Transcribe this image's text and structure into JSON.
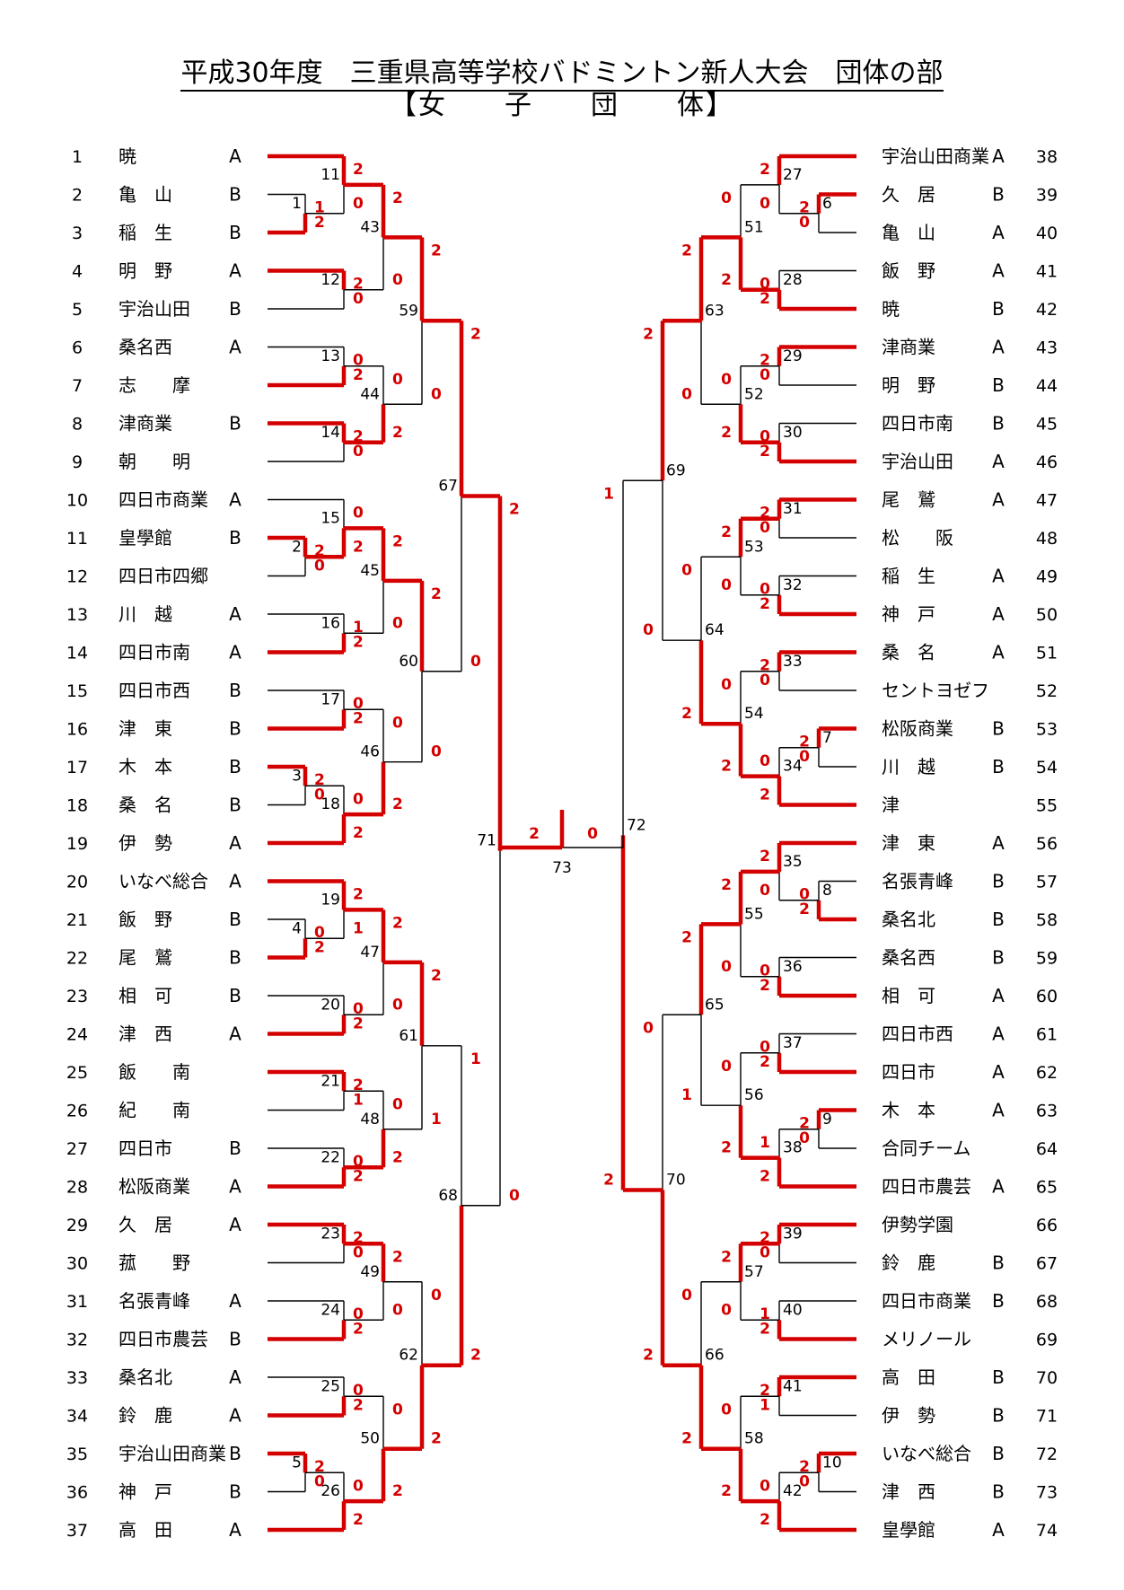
{
  "header": {
    "title": "平成30年度　三重県高等学校バドミントン新人大会　団体の部",
    "subtitle": "【女　　子　　団　　体】"
  },
  "colors": {
    "winner_line": "#d40000",
    "line": "#000000",
    "score": "#d40000"
  },
  "left_teams": [
    {
      "no": "1",
      "name": "暁",
      "suffix": "A"
    },
    {
      "no": "2",
      "name": "亀　山",
      "suffix": "B"
    },
    {
      "no": "3",
      "name": "稲　生",
      "suffix": "B"
    },
    {
      "no": "4",
      "name": "明　野",
      "suffix": "A"
    },
    {
      "no": "5",
      "name": "宇治山田",
      "suffix": "B"
    },
    {
      "no": "6",
      "name": "桑名西",
      "suffix": "A"
    },
    {
      "no": "7",
      "name": "志　　摩",
      "suffix": ""
    },
    {
      "no": "8",
      "name": "津商業",
      "suffix": "B"
    },
    {
      "no": "9",
      "name": "朝　　明",
      "suffix": ""
    },
    {
      "no": "10",
      "name": "四日市商業",
      "suffix": "A"
    },
    {
      "no": "11",
      "name": "皇學館",
      "suffix": "B"
    },
    {
      "no": "12",
      "name": "四日市四郷",
      "suffix": ""
    },
    {
      "no": "13",
      "name": "川　越",
      "suffix": "A"
    },
    {
      "no": "14",
      "name": "四日市南",
      "suffix": "A"
    },
    {
      "no": "15",
      "name": "四日市西",
      "suffix": "B"
    },
    {
      "no": "16",
      "name": "津　東",
      "suffix": "B"
    },
    {
      "no": "17",
      "name": "木　本",
      "suffix": "B"
    },
    {
      "no": "18",
      "name": "桑　名",
      "suffix": "B"
    },
    {
      "no": "19",
      "name": "伊　勢",
      "suffix": "A"
    },
    {
      "no": "20",
      "name": "いなべ総合",
      "suffix": "A"
    },
    {
      "no": "21",
      "name": "飯　野",
      "suffix": "B"
    },
    {
      "no": "22",
      "name": "尾　鷲",
      "suffix": "B"
    },
    {
      "no": "23",
      "name": "相　可",
      "suffix": "B"
    },
    {
      "no": "24",
      "name": "津　西",
      "suffix": "A"
    },
    {
      "no": "25",
      "name": "飯　　南",
      "suffix": ""
    },
    {
      "no": "26",
      "name": "紀　　南",
      "suffix": ""
    },
    {
      "no": "27",
      "name": "四日市",
      "suffix": "B"
    },
    {
      "no": "28",
      "name": "松阪商業",
      "suffix": "A"
    },
    {
      "no": "29",
      "name": "久　居",
      "suffix": "A"
    },
    {
      "no": "30",
      "name": "菰　　野",
      "suffix": ""
    },
    {
      "no": "31",
      "name": "名張青峰",
      "suffix": "A"
    },
    {
      "no": "32",
      "name": "四日市農芸",
      "suffix": "B"
    },
    {
      "no": "33",
      "name": "桑名北",
      "suffix": "A"
    },
    {
      "no": "34",
      "name": "鈴　鹿",
      "suffix": "A"
    },
    {
      "no": "35",
      "name": "宇治山田商業",
      "suffix": "B"
    },
    {
      "no": "36",
      "name": "神　戸",
      "suffix": "B"
    },
    {
      "no": "37",
      "name": "高　田",
      "suffix": "A"
    }
  ],
  "right_teams": [
    {
      "no": "38",
      "name": "宇治山田商業",
      "suffix": "A"
    },
    {
      "no": "39",
      "name": "久　居",
      "suffix": "B"
    },
    {
      "no": "40",
      "name": "亀　山",
      "suffix": "A"
    },
    {
      "no": "41",
      "name": "飯　野",
      "suffix": "A"
    },
    {
      "no": "42",
      "name": "暁",
      "suffix": "B"
    },
    {
      "no": "43",
      "name": "津商業",
      "suffix": "A"
    },
    {
      "no": "44",
      "name": "明　野",
      "suffix": "B"
    },
    {
      "no": "45",
      "name": "四日市南",
      "suffix": "B"
    },
    {
      "no": "46",
      "name": "宇治山田",
      "suffix": "A"
    },
    {
      "no": "47",
      "name": "尾　鷲",
      "suffix": "A"
    },
    {
      "no": "48",
      "name": "松　　阪",
      "suffix": ""
    },
    {
      "no": "49",
      "name": "稲　生",
      "suffix": "A"
    },
    {
      "no": "50",
      "name": "神　戸",
      "suffix": "A"
    },
    {
      "no": "51",
      "name": "桑　名",
      "suffix": "A"
    },
    {
      "no": "52",
      "name": "セントヨゼフ",
      "suffix": ""
    },
    {
      "no": "53",
      "name": "松阪商業",
      "suffix": "B"
    },
    {
      "no": "54",
      "name": "川　越",
      "suffix": "B"
    },
    {
      "no": "55",
      "name": "津",
      "suffix": ""
    },
    {
      "no": "56",
      "name": "津　東",
      "suffix": "A"
    },
    {
      "no": "57",
      "name": "名張青峰",
      "suffix": "B"
    },
    {
      "no": "58",
      "name": "桑名北",
      "suffix": "B"
    },
    {
      "no": "59",
      "name": "桑名西",
      "suffix": "B"
    },
    {
      "no": "60",
      "name": "相　可",
      "suffix": "A"
    },
    {
      "no": "61",
      "name": "四日市西",
      "suffix": "A"
    },
    {
      "no": "62",
      "name": "四日市",
      "suffix": "A"
    },
    {
      "no": "63",
      "name": "木　本",
      "suffix": "A"
    },
    {
      "no": "64",
      "name": "合同チーム",
      "suffix": ""
    },
    {
      "no": "65",
      "name": "四日市農芸",
      "suffix": "A"
    },
    {
      "no": "66",
      "name": "伊勢学園",
      "suffix": ""
    },
    {
      "no": "67",
      "name": "鈴　鹿",
      "suffix": "B"
    },
    {
      "no": "68",
      "name": "四日市商業",
      "suffix": "B"
    },
    {
      "no": "69",
      "name": "メリノール",
      "suffix": ""
    },
    {
      "no": "70",
      "name": "高　田",
      "suffix": "B"
    },
    {
      "no": "71",
      "name": "伊　勢",
      "suffix": "B"
    },
    {
      "no": "72",
      "name": "いなべ総合",
      "suffix": "B"
    },
    {
      "no": "73",
      "name": "津　西",
      "suffix": "B"
    },
    {
      "no": "74",
      "name": "皇學館",
      "suffix": "A"
    }
  ],
  "matches": [
    {
      "id": "1",
      "a": "2",
      "b": "3",
      "sa": 1,
      "sb": 2
    },
    {
      "id": "2",
      "a": "11",
      "b": "12",
      "sa": 2,
      "sb": 0
    },
    {
      "id": "3",
      "a": "17",
      "b": "18",
      "sa": 2,
      "sb": 0
    },
    {
      "id": "4",
      "a": "21",
      "b": "22",
      "sa": 0,
      "sb": 2
    },
    {
      "id": "5",
      "a": "35",
      "b": "36",
      "sa": 2,
      "sb": 0
    },
    {
      "id": "6",
      "a": "39",
      "b": "40",
      "sa": 2,
      "sb": 0
    },
    {
      "id": "7",
      "a": "53",
      "b": "54",
      "sa": 2,
      "sb": 0
    },
    {
      "id": "8",
      "a": "57",
      "b": "58",
      "sa": 0,
      "sb": 2
    },
    {
      "id": "9",
      "a": "63",
      "b": "64",
      "sa": 2,
      "sb": 0
    },
    {
      "id": "10",
      "a": "72",
      "b": "73",
      "sa": 2,
      "sb": 0
    },
    {
      "id": "11",
      "a": "1",
      "b": "1w",
      "sa": 2,
      "sb": 0
    },
    {
      "id": "12",
      "a": "4",
      "b": "5",
      "sa": 2,
      "sb": 0
    },
    {
      "id": "13",
      "a": "6",
      "b": "7",
      "sa": 0,
      "sb": 2
    },
    {
      "id": "14",
      "a": "8",
      "b": "9",
      "sa": 2,
      "sb": 0
    },
    {
      "id": "15",
      "a": "10",
      "b": "2w",
      "sa": 0,
      "sb": 2
    },
    {
      "id": "16",
      "a": "13",
      "b": "14",
      "sa": 1,
      "sb": 2
    },
    {
      "id": "17",
      "a": "15",
      "b": "16",
      "sa": 0,
      "sb": 2
    },
    {
      "id": "18",
      "a": "3w",
      "b": "19",
      "sa": 0,
      "sb": 2
    },
    {
      "id": "19",
      "a": "20",
      "b": "4w",
      "sa": 2,
      "sb": 1
    },
    {
      "id": "20",
      "a": "23",
      "b": "24",
      "sa": 0,
      "sb": 2
    },
    {
      "id": "21",
      "a": "25",
      "b": "26",
      "sa": 2,
      "sb": 1
    },
    {
      "id": "22",
      "a": "27",
      "b": "28",
      "sa": 0,
      "sb": 2
    },
    {
      "id": "23",
      "a": "29",
      "b": "30",
      "sa": 2,
      "sb": 0
    },
    {
      "id": "24",
      "a": "31",
      "b": "32",
      "sa": 0,
      "sb": 2
    },
    {
      "id": "25",
      "a": "33",
      "b": "34",
      "sa": 0,
      "sb": 2
    },
    {
      "id": "26",
      "a": "5w",
      "b": "37",
      "sa": 0,
      "sb": 2
    },
    {
      "id": "27",
      "a": "38",
      "b": "6w",
      "sa": 2,
      "sb": 0
    },
    {
      "id": "28",
      "a": "41",
      "b": "42",
      "sa": 0,
      "sb": 2
    },
    {
      "id": "29",
      "a": "43",
      "b": "44",
      "sa": 2,
      "sb": 0
    },
    {
      "id": "30",
      "a": "45",
      "b": "46",
      "sa": 0,
      "sb": 2
    },
    {
      "id": "31",
      "a": "47",
      "b": "48",
      "sa": 2,
      "sb": 0
    },
    {
      "id": "32",
      "a": "49",
      "b": "50",
      "sa": 0,
      "sb": 2
    },
    {
      "id": "33",
      "a": "51",
      "b": "52",
      "sa": 2,
      "sb": 0
    },
    {
      "id": "34",
      "a": "7w",
      "b": "55",
      "sa": 0,
      "sb": 2
    },
    {
      "id": "35",
      "a": "56",
      "b": "8w",
      "sa": 2,
      "sb": 0
    },
    {
      "id": "36",
      "a": "59",
      "b": "60",
      "sa": 0,
      "sb": 2
    },
    {
      "id": "37",
      "a": "61",
      "b": "62",
      "sa": 0,
      "sb": 2
    },
    {
      "id": "38",
      "a": "9w",
      "b": "65",
      "sa": 1,
      "sb": 2
    },
    {
      "id": "39",
      "a": "66",
      "b": "67",
      "sa": 2,
      "sb": 0
    },
    {
      "id": "40",
      "a": "68",
      "b": "69",
      "sa": 1,
      "sb": 2
    },
    {
      "id": "41",
      "a": "70",
      "b": "71",
      "sa": 2,
      "sb": 1
    },
    {
      "id": "42",
      "a": "10w",
      "b": "74",
      "sa": 0,
      "sb": 2
    },
    {
      "id": "43",
      "a": "11w",
      "b": "12w",
      "sa": 2,
      "sb": 0
    },
    {
      "id": "44",
      "a": "13w",
      "b": "14w",
      "sa": 0,
      "sb": 2
    },
    {
      "id": "45",
      "a": "15w",
      "b": "16w",
      "sa": 2,
      "sb": 0
    },
    {
      "id": "46",
      "a": "17w",
      "b": "18w",
      "sa": 0,
      "sb": 2
    },
    {
      "id": "47",
      "a": "19w",
      "b": "20w",
      "sa": 2,
      "sb": 0
    },
    {
      "id": "48",
      "a": "21w",
      "b": "22w",
      "sa": 0,
      "sb": 2
    },
    {
      "id": "49",
      "a": "23w",
      "b": "24w",
      "sa": 2,
      "sb": 0
    },
    {
      "id": "50",
      "a": "25w",
      "b": "26w",
      "sa": 0,
      "sb": 2
    },
    {
      "id": "51",
      "a": "27w",
      "b": "28w",
      "sa": 0,
      "sb": 2
    },
    {
      "id": "52",
      "a": "29w",
      "b": "30w",
      "sa": 0,
      "sb": 2
    },
    {
      "id": "53",
      "a": "31w",
      "b": "32w",
      "sa": 2,
      "sb": 0
    },
    {
      "id": "54",
      "a": "33w",
      "b": "34w",
      "sa": 0,
      "sb": 2
    },
    {
      "id": "55",
      "a": "35w",
      "b": "36w",
      "sa": 2,
      "sb": 0
    },
    {
      "id": "56",
      "a": "37w",
      "b": "38w",
      "sa": 0,
      "sb": 2
    },
    {
      "id": "57",
      "a": "39w",
      "b": "40w",
      "sa": 2,
      "sb": 0
    },
    {
      "id": "58",
      "a": "41w",
      "b": "42w",
      "sa": 0,
      "sb": 2
    },
    {
      "id": "59",
      "a": "43w",
      "b": "44w",
      "sa": 2,
      "sb": 0
    },
    {
      "id": "60",
      "a": "45w",
      "b": "46w",
      "sa": 2,
      "sb": 0
    },
    {
      "id": "61",
      "a": "47w",
      "b": "48w",
      "sa": 2,
      "sb": 1
    },
    {
      "id": "62",
      "a": "49w",
      "b": "50w",
      "sa": 0,
      "sb": 2
    },
    {
      "id": "63",
      "a": "51w",
      "b": "52w",
      "sa": 2,
      "sb": 0
    },
    {
      "id": "64",
      "a": "53w",
      "b": "54w",
      "sa": 0,
      "sb": 2
    },
    {
      "id": "65",
      "a": "55w",
      "b": "56w",
      "sa": 2,
      "sb": 1
    },
    {
      "id": "66",
      "a": "57w",
      "b": "58w",
      "sa": 0,
      "sb": 2
    },
    {
      "id": "67",
      "a": "59w",
      "b": "60w",
      "sa": 2,
      "sb": 0
    },
    {
      "id": "68",
      "a": "61w",
      "b": "62w",
      "sa": 1,
      "sb": 2
    },
    {
      "id": "69",
      "a": "63w",
      "b": "64w",
      "sa": 2,
      "sb": 0
    },
    {
      "id": "70",
      "a": "65w",
      "b": "66w",
      "sa": 0,
      "sb": 2
    },
    {
      "id": "71",
      "a": "67w",
      "b": "68w",
      "sa": 2,
      "sb": 0
    },
    {
      "id": "72",
      "a": "69w",
      "b": "70w",
      "sa": 1,
      "sb": 2
    },
    {
      "id": "73",
      "a": "71w",
      "b": "72w",
      "sa": 2,
      "sb": 0
    }
  ]
}
